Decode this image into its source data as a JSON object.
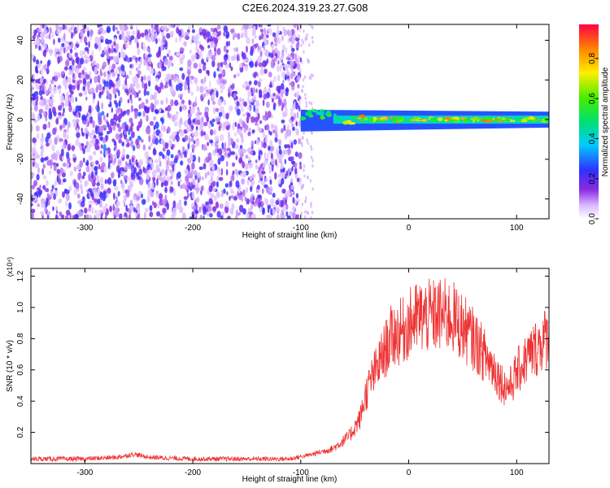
{
  "title": "C2E6.2024.319.23.27.G08",
  "chart_data": [
    {
      "type": "heatmap",
      "xlabel": "Height of straight line (km)",
      "ylabel": "Frequency (Hz)",
      "xlim": [
        -350,
        130
      ],
      "ylim": [
        -50,
        48
      ],
      "x_ticks": [
        -300,
        -200,
        -100,
        0,
        100
      ],
      "y_ticks": [
        -40,
        -20,
        0,
        20,
        40
      ],
      "colorbar": {
        "label": "Normalized spectral amplitude",
        "range": [
          0,
          0.97
        ],
        "ticks": [
          0.0,
          0.2,
          0.4,
          0.6,
          0.8
        ],
        "tick_labels": [
          "0.0",
          "0.2",
          "0.4",
          "0.6",
          "0.8"
        ]
      },
      "features": {
        "noise_region_km": [
          -350,
          -100
        ],
        "signal_line_start_km": -100,
        "signal_line_frequency_hz": 0,
        "signal_peak_amplitude": 0.9
      }
    },
    {
      "type": "line",
      "xlabel": "Height of straight line (km)",
      "ylabel": "SNR (10 * v/v)",
      "y_multiplier": "(x10⁴)",
      "xlim": [
        -350,
        130
      ],
      "ylim": [
        0,
        1.25
      ],
      "x_ticks": [
        -300,
        -200,
        -100,
        0,
        100
      ],
      "y_ticks": [
        0.2,
        0.4,
        0.6,
        0.8,
        1.0,
        1.2
      ],
      "y_tick_labels": [
        "0.2",
        "0.4",
        "0.6",
        "0.8",
        "1.0",
        "1.2"
      ],
      "color": "#ee3333",
      "series": [
        {
          "x": [
            -350,
            -300,
            -270,
            -255,
            -240,
            -200,
            -150,
            -110,
            -90,
            -70,
            -55,
            -45,
            -40,
            -35,
            -30,
            -25,
            -20,
            -15,
            -10,
            -5,
            0,
            5,
            10,
            20,
            30,
            40,
            50,
            60,
            70,
            80,
            85,
            90,
            95,
            100,
            110,
            120,
            130
          ],
          "values": [
            0.03,
            0.03,
            0.04,
            0.06,
            0.04,
            0.03,
            0.03,
            0.03,
            0.06,
            0.1,
            0.18,
            0.3,
            0.45,
            0.55,
            0.62,
            0.7,
            0.78,
            0.85,
            0.86,
            0.88,
            0.92,
            0.95,
            0.97,
            0.97,
            0.98,
            0.97,
            0.9,
            0.82,
            0.72,
            0.62,
            0.55,
            0.5,
            0.52,
            0.6,
            0.7,
            0.78,
            0.85
          ]
        }
      ]
    }
  ]
}
